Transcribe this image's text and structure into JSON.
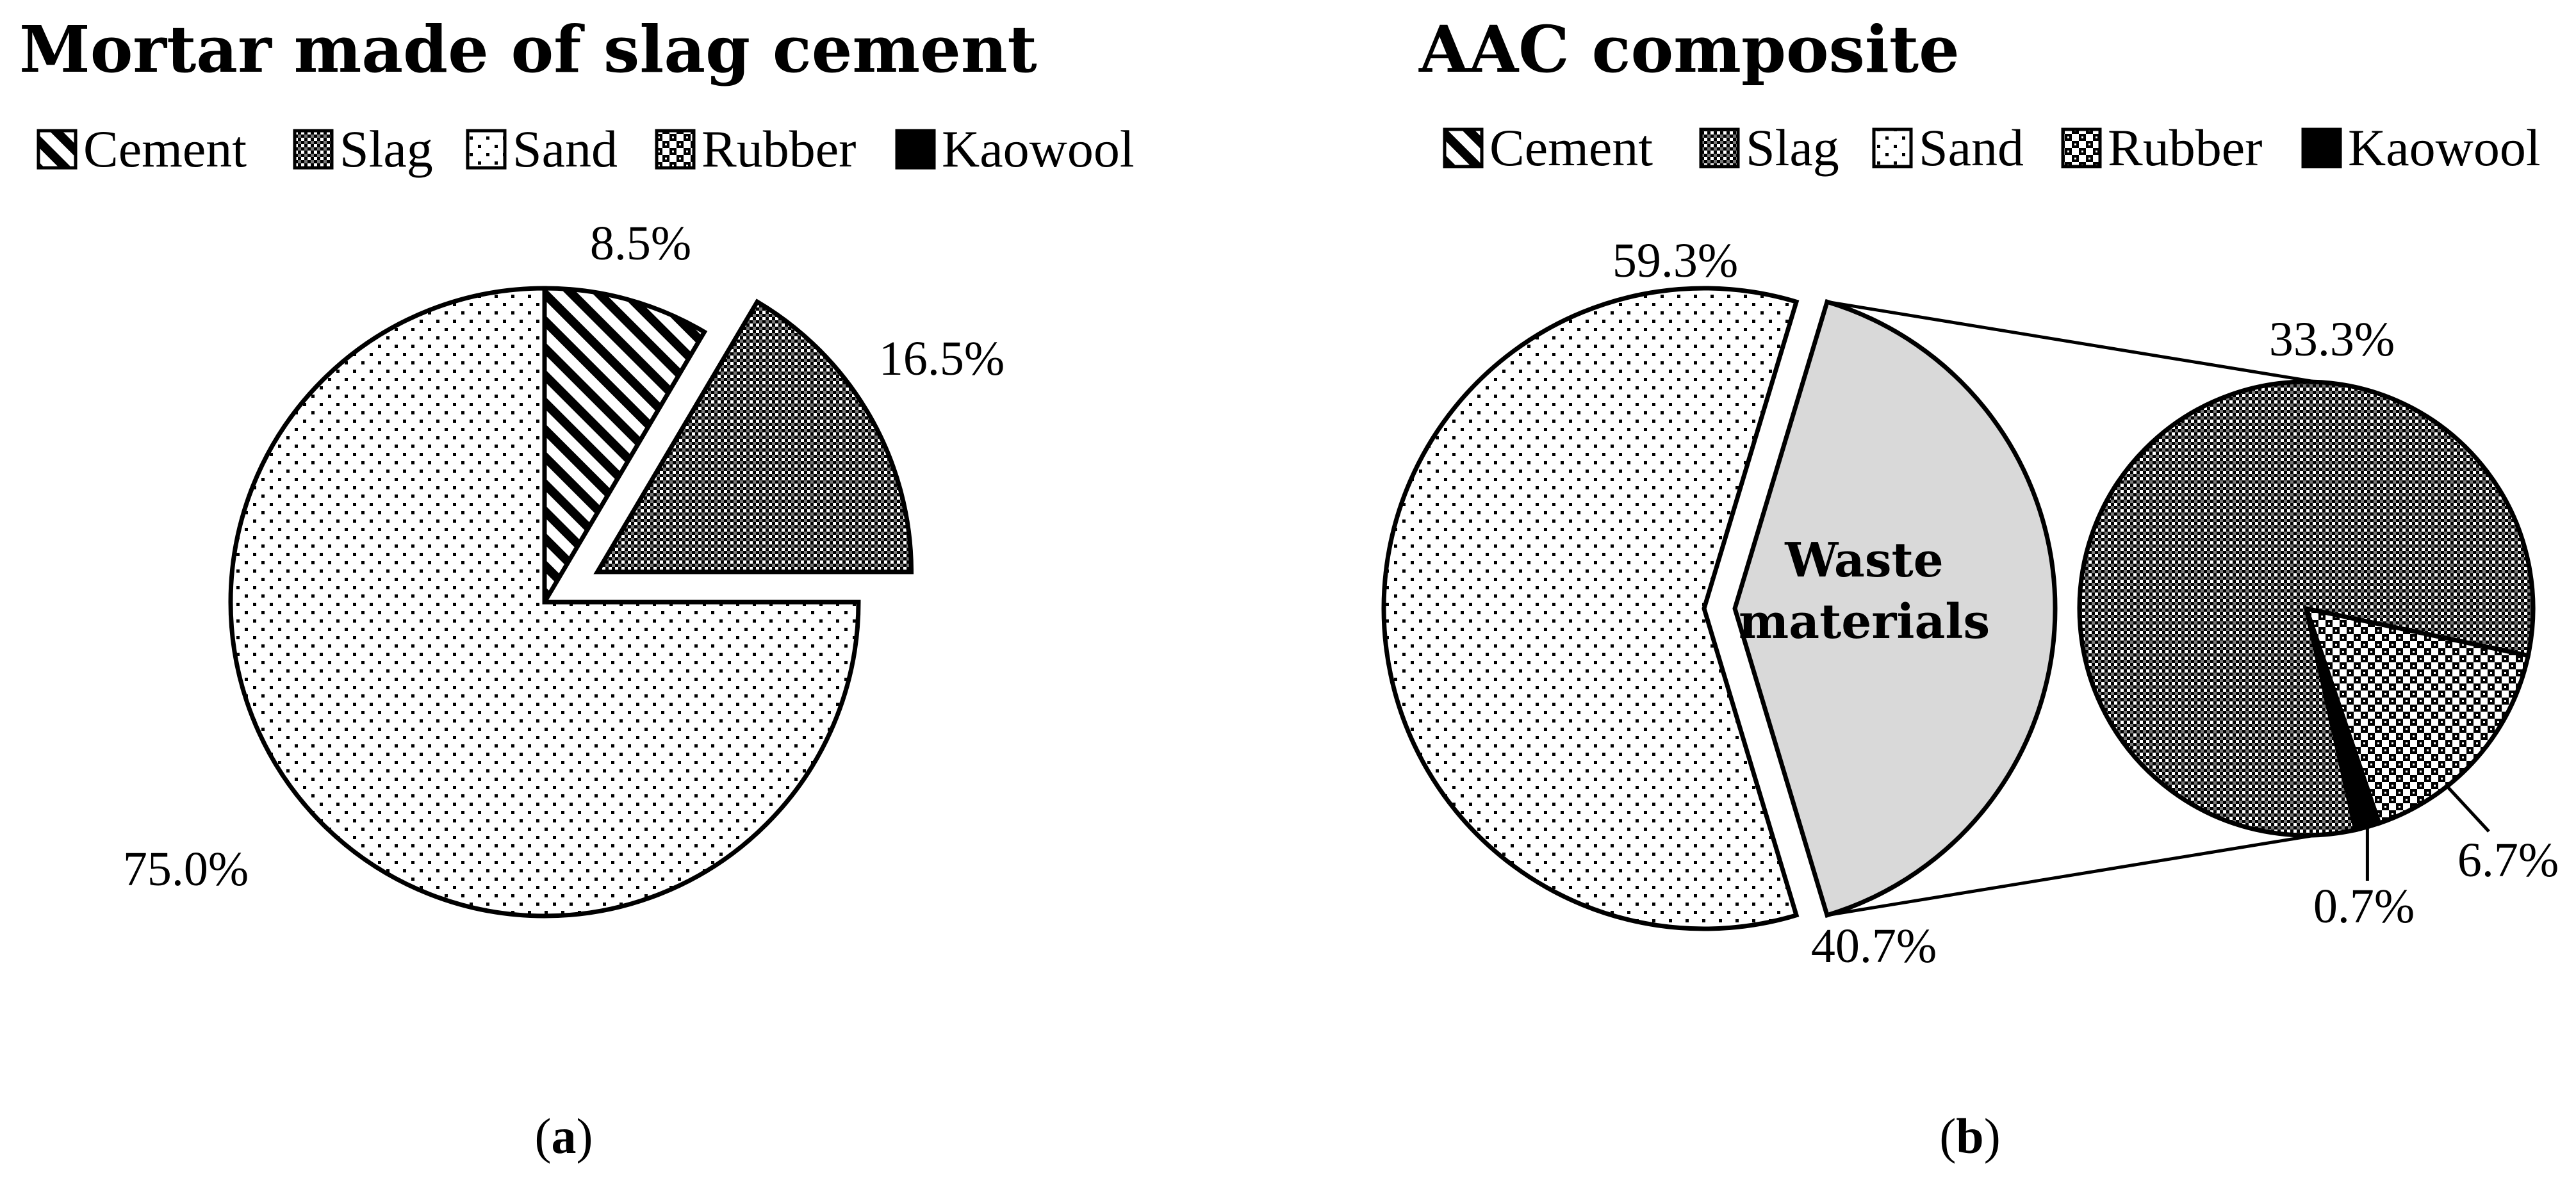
{
  "panels": {
    "a": {
      "title": "Mortar made of slag cement",
      "caption_open": "(",
      "caption_letter": "a",
      "caption_close": ")"
    },
    "b": {
      "title": "AAC composite",
      "caption_open": "(",
      "caption_letter": "b",
      "caption_close": ")"
    }
  },
  "legend": {
    "items": [
      {
        "label": "Cement",
        "pattern": "hatch-diagonal"
      },
      {
        "label": "Slag",
        "pattern": "crosshatch-dense"
      },
      {
        "label": "Sand",
        "pattern": "dots-sparse"
      },
      {
        "label": "Rubber",
        "pattern": "checker-large"
      },
      {
        "label": "Kaowool",
        "pattern": "solid-black"
      }
    ]
  },
  "colors": {
    "waste_fill": "#d9d9d9",
    "black": "#000000",
    "background": "#ffffff"
  },
  "chart_data": [
    {
      "type": "pie",
      "title": "Mortar made of slag cement",
      "slices": [
        {
          "category": "Cement",
          "value": 8.5,
          "label": "8.5%"
        },
        {
          "category": "Slag",
          "value": 16.5,
          "label": "16.5%",
          "exploded": true
        },
        {
          "category": "Sand",
          "value": 75.0,
          "label": "75.0%"
        }
      ]
    },
    {
      "type": "pie",
      "title": "AAC composite",
      "slices": [
        {
          "category": "Sand",
          "value": 59.3,
          "label": "59.3%"
        },
        {
          "category": "Waste materials",
          "value": 40.7,
          "label": "40.7%",
          "exploded": true
        }
      ],
      "breakdown": {
        "of": "Waste materials",
        "slices": [
          {
            "category": "Slag",
            "value": 33.3,
            "label": "33.3%"
          },
          {
            "category": "Rubber",
            "value": 6.7,
            "label": "6.7%"
          },
          {
            "category": "Kaowool",
            "value": 0.7,
            "label": "0.7%"
          }
        ]
      }
    }
  ]
}
